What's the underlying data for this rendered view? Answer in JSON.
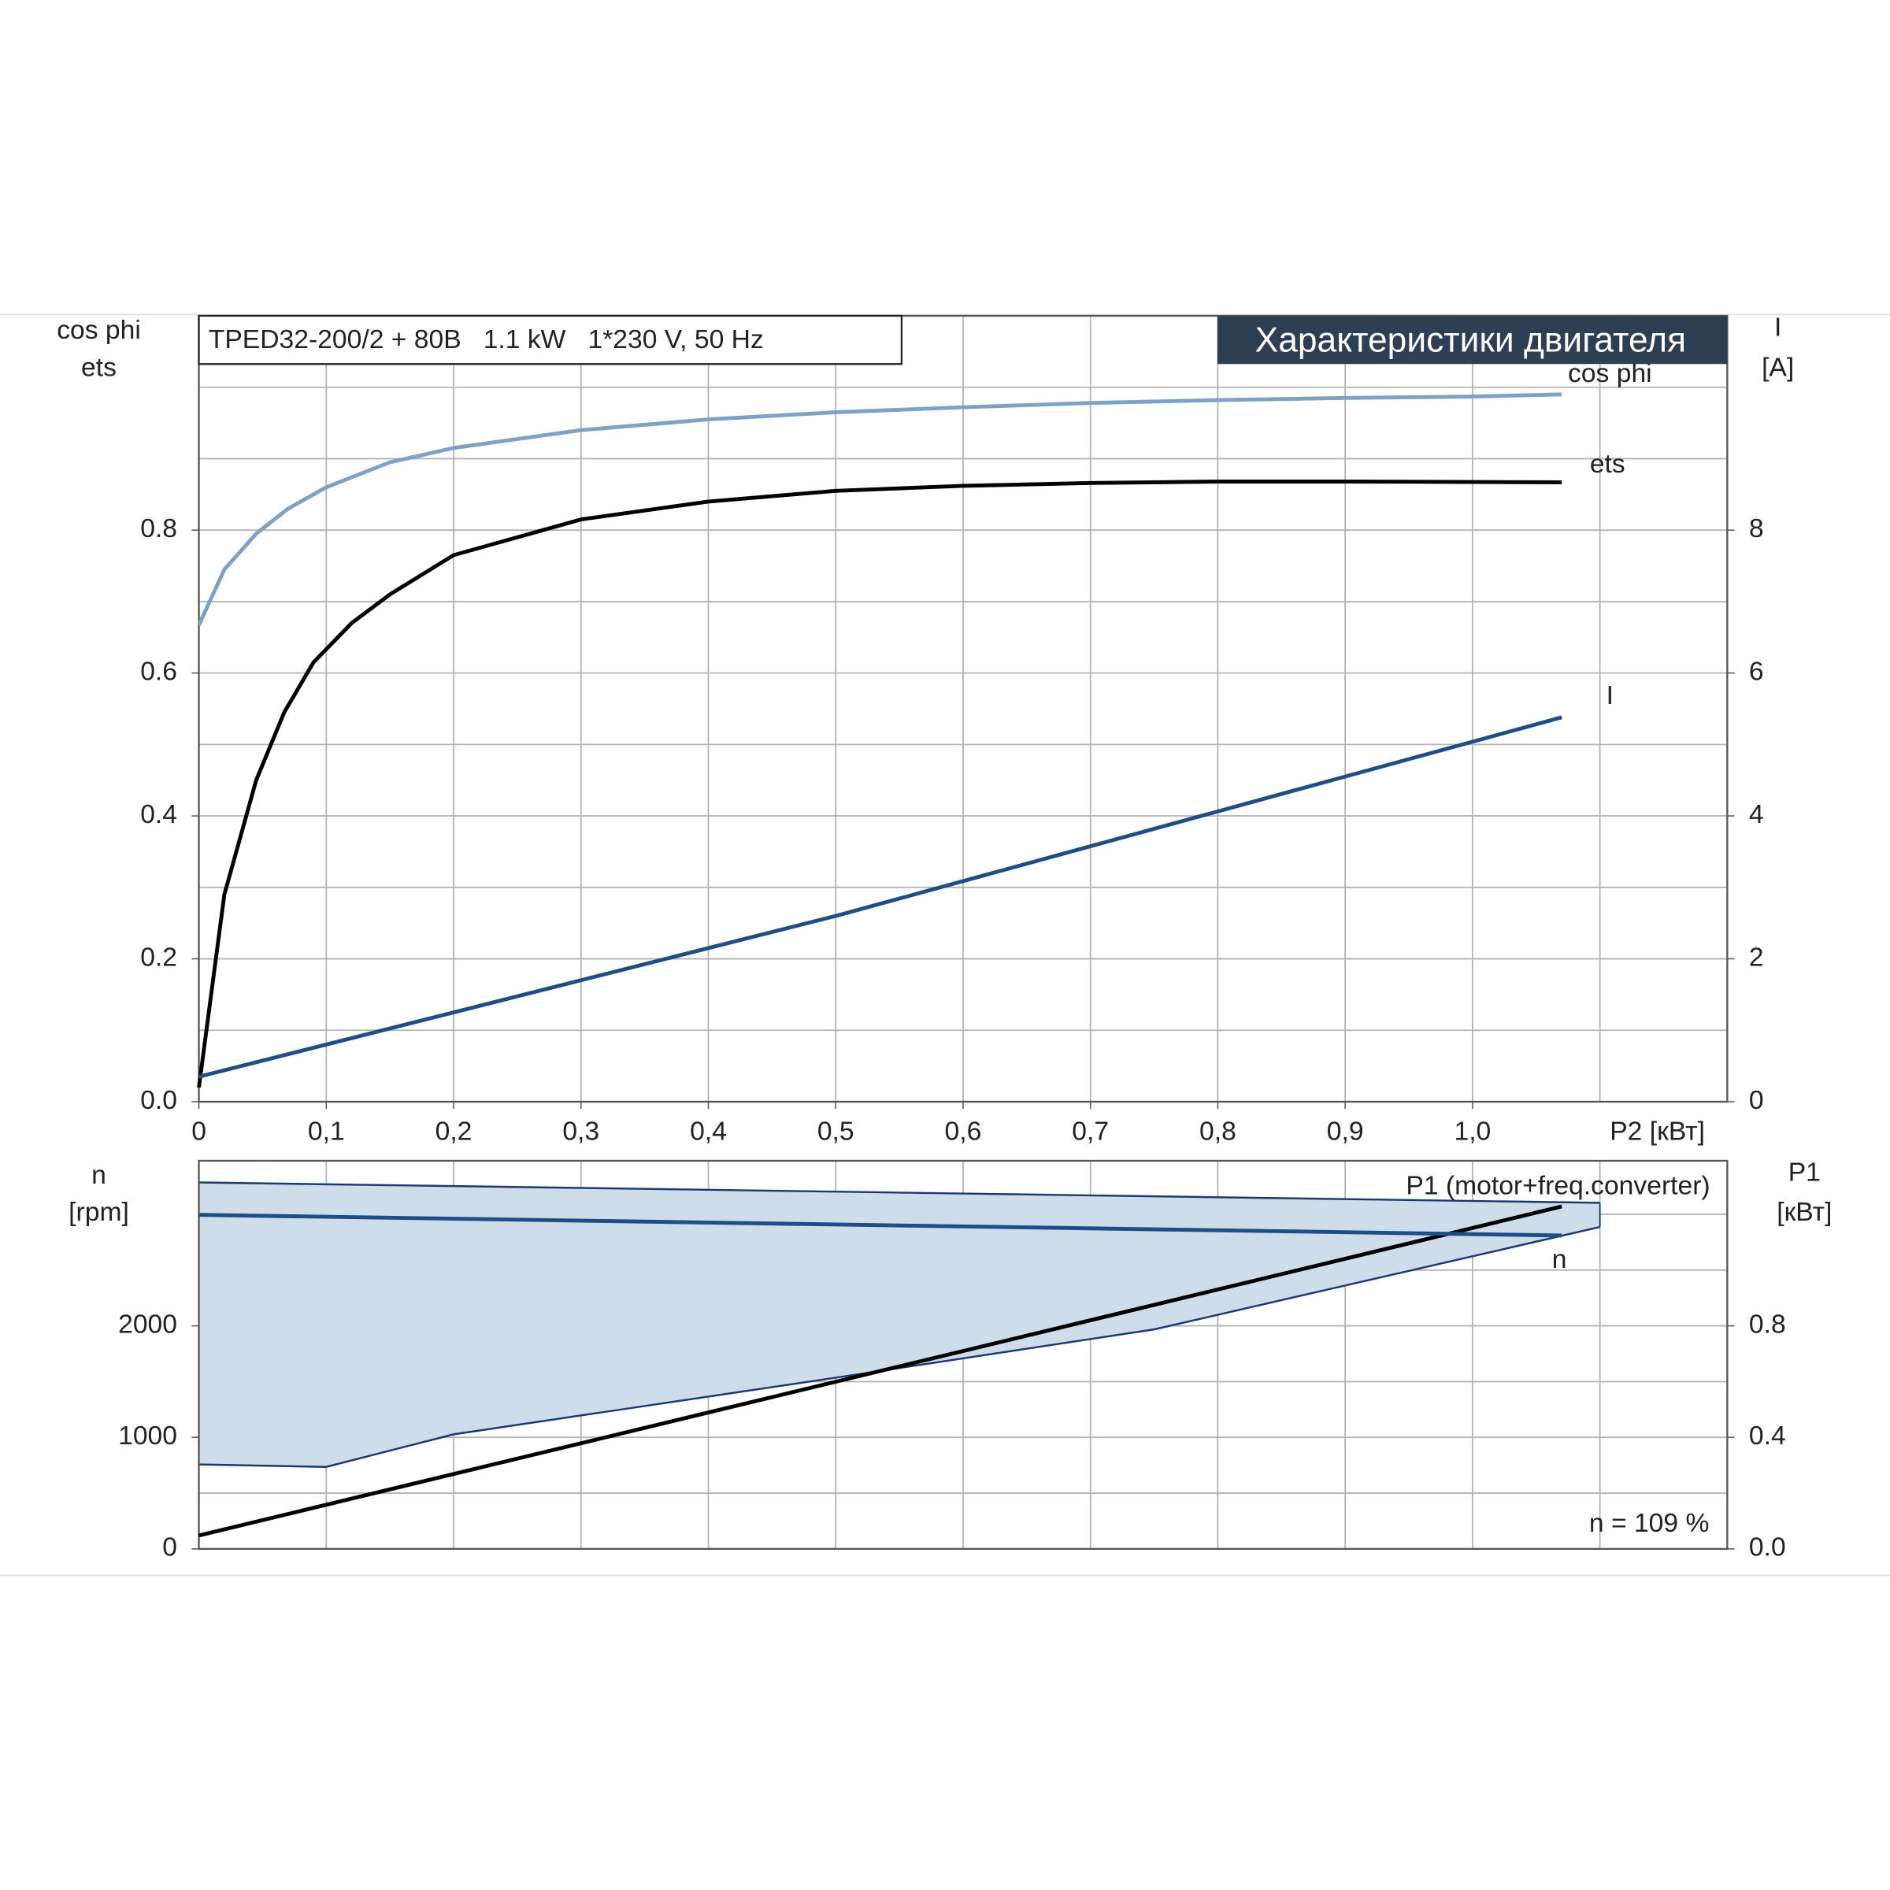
{
  "chart_data": [
    {
      "type": "line",
      "title": "Характеристики двигателя",
      "subtitle": "TPED32-200/2 + 80B   1.1 kW   1*230 V, 50 Hz",
      "ylabel": [
        "cos phi",
        "ets"
      ],
      "y2label": [
        "I",
        "[A]"
      ],
      "xlabel": "P2 [кВт]",
      "xlim": [
        0,
        1.2
      ],
      "ylim": [
        0,
        1.1
      ],
      "y2lim": [
        0,
        11
      ],
      "xticks": [
        0,
        {
          "value": 0.1,
          "label": "0,1"
        },
        {
          "value": 0.2,
          "label": "0,2"
        },
        {
          "value": 0.3,
          "label": "0,3"
        },
        {
          "value": 0.4,
          "label": "0,4"
        },
        {
          "value": 0.5,
          "label": "0,5"
        },
        {
          "value": 0.6,
          "label": "0,6"
        },
        {
          "value": 0.7,
          "label": "0,7"
        },
        {
          "value": 0.8,
          "label": "0,8"
        },
        {
          "value": 0.9,
          "label": "0,9"
        },
        {
          "value": 1.0,
          "label": "1,0"
        }
      ],
      "yticks": [
        {
          "value": 0,
          "label": "0.0"
        },
        0.2,
        0.4,
        0.6,
        0.8
      ],
      "y2ticks": [
        0,
        2,
        4,
        6,
        8
      ],
      "xgrid": [
        0.1,
        0.2,
        0.3,
        0.4,
        0.5,
        0.6,
        0.7,
        0.8,
        0.9,
        1.0,
        1.1
      ],
      "ygrid": [
        0.1,
        0.2,
        0.3,
        0.4,
        0.5,
        0.6,
        0.7,
        0.8,
        0.9,
        1.0
      ],
      "series": [
        {
          "name": "cos phi",
          "color": "#7ea2c5",
          "axis": "y",
          "x": [
            0,
            0.02,
            0.045,
            0.07,
            0.1,
            0.15,
            0.2,
            0.3,
            0.4,
            0.5,
            0.6,
            0.7,
            0.8,
            0.9,
            1.0,
            1.07
          ],
          "values": [
            0.667,
            0.745,
            0.795,
            0.83,
            0.86,
            0.895,
            0.915,
            0.94,
            0.955,
            0.965,
            0.972,
            0.978,
            0.982,
            0.985,
            0.987,
            0.99
          ]
        },
        {
          "name": "ets",
          "color": "#000000",
          "axis": "y",
          "x": [
            0,
            0.02,
            0.045,
            0.067,
            0.09,
            0.12,
            0.15,
            0.2,
            0.3,
            0.4,
            0.5,
            0.6,
            0.7,
            0.8,
            0.9,
            1.07
          ],
          "values": [
            0.02,
            0.29,
            0.45,
            0.545,
            0.615,
            0.67,
            0.71,
            0.765,
            0.815,
            0.84,
            0.855,
            0.862,
            0.866,
            0.868,
            0.868,
            0.867
          ]
        },
        {
          "name": "I",
          "color": "#1f4e86",
          "axis": "y2",
          "x": [
            0,
            0.5,
            1.07
          ],
          "values": [
            0.35,
            2.6,
            5.38
          ]
        }
      ]
    },
    {
      "type": "line",
      "ylabel": [
        "n",
        "[rpm]"
      ],
      "y2label": [
        "P1",
        "[кВт]"
      ],
      "annotation": "n = 109 %",
      "xlim": [
        0,
        1.2
      ],
      "ylim": [
        0,
        3480
      ],
      "y2lim": [
        0,
        1.392
      ],
      "yticks": [
        0,
        1000,
        2000
      ],
      "y2ticks": [
        {
          "value": 0,
          "label": "0.0"
        },
        0.4,
        0.8
      ],
      "xgrid": [
        0.1,
        0.2,
        0.3,
        0.4,
        0.5,
        0.6,
        0.7,
        0.8,
        0.9,
        1.0,
        1.1
      ],
      "ygrid": [
        500,
        1000,
        1500,
        2000,
        2500,
        3000
      ],
      "band": {
        "color": "#cfdcea",
        "edge": "#1a3a73",
        "x": [
          0,
          0.1,
          0.2,
          0.5,
          0.75,
          1.1
        ],
        "upper": [
          3286,
          3269,
          3253,
          3203,
          3161,
          3103
        ],
        "lower": [
          757,
          735,
          1027,
          1535,
          1968,
          2886
        ]
      },
      "series": [
        {
          "name": "P1 (motor+freq.converter)",
          "color": "#000000",
          "axis": "y2",
          "x": [
            0,
            1.07
          ],
          "values": [
            0.048,
            1.228
          ]
        },
        {
          "name": "n",
          "color": "#1f4e86",
          "axis": "y",
          "x": [
            0,
            1.07
          ],
          "values": [
            2995,
            2810
          ]
        }
      ]
    }
  ]
}
